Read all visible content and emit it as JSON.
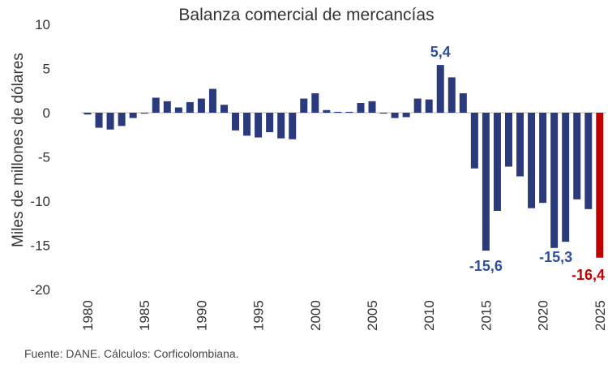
{
  "chart_data": {
    "type": "bar",
    "title": "Balanza comercial de mercancías",
    "ylabel": "Miles de millones de dólares",
    "xlabel": "",
    "ylim": [
      -20,
      10
    ],
    "yticks": [
      "10",
      "5",
      "0",
      "-5",
      "-10",
      "-15",
      "-20"
    ],
    "ytick_values": [
      10,
      5,
      0,
      -5,
      -10,
      -15,
      -20
    ],
    "xticks": [
      "1980",
      "1985",
      "1990",
      "1995",
      "2000",
      "2005",
      "2010",
      "2015",
      "2020",
      "2025"
    ],
    "categories": [
      1980,
      1981,
      1982,
      1983,
      1984,
      1985,
      1986,
      1987,
      1988,
      1989,
      1990,
      1991,
      1992,
      1993,
      1994,
      1995,
      1996,
      1997,
      1998,
      1999,
      2000,
      2001,
      2002,
      2003,
      2004,
      2005,
      2006,
      2007,
      2008,
      2009,
      2010,
      2011,
      2012,
      2013,
      2014,
      2015,
      2016,
      2017,
      2018,
      2019,
      2020,
      2021,
      2022,
      2023,
      2024,
      2025
    ],
    "values": [
      -0.2,
      -1.7,
      -1.9,
      -1.5,
      -0.6,
      -0.1,
      1.7,
      1.3,
      0.6,
      1.2,
      1.6,
      2.7,
      0.9,
      -2.0,
      -2.6,
      -2.8,
      -2.2,
      -2.9,
      -3.0,
      1.6,
      2.2,
      0.3,
      0.1,
      0.1,
      1.1,
      1.3,
      -0.1,
      -0.6,
      -0.5,
      1.6,
      1.5,
      5.4,
      4.0,
      2.2,
      -6.3,
      -15.6,
      -11.1,
      -6.1,
      -7.2,
      -10.8,
      -10.2,
      -15.3,
      -14.6,
      -9.8,
      -10.9,
      -16.4
    ],
    "annotations": [
      {
        "year": 2011,
        "text": "5,4"
      },
      {
        "year": 2015,
        "text": "-15,6"
      },
      {
        "year": 2021,
        "text": "-15,3"
      },
      {
        "year": 2025,
        "text": "-16,4"
      }
    ],
    "grid": false,
    "colors": {
      "bar": "#2b3a7a",
      "highlight": "#c00000",
      "label": "#2f4f9b",
      "zero_line": "#d0d0d0"
    },
    "highlight_year": 2025
  },
  "footer": "Fuente: DANE. Cálculos: Corficolombiana."
}
